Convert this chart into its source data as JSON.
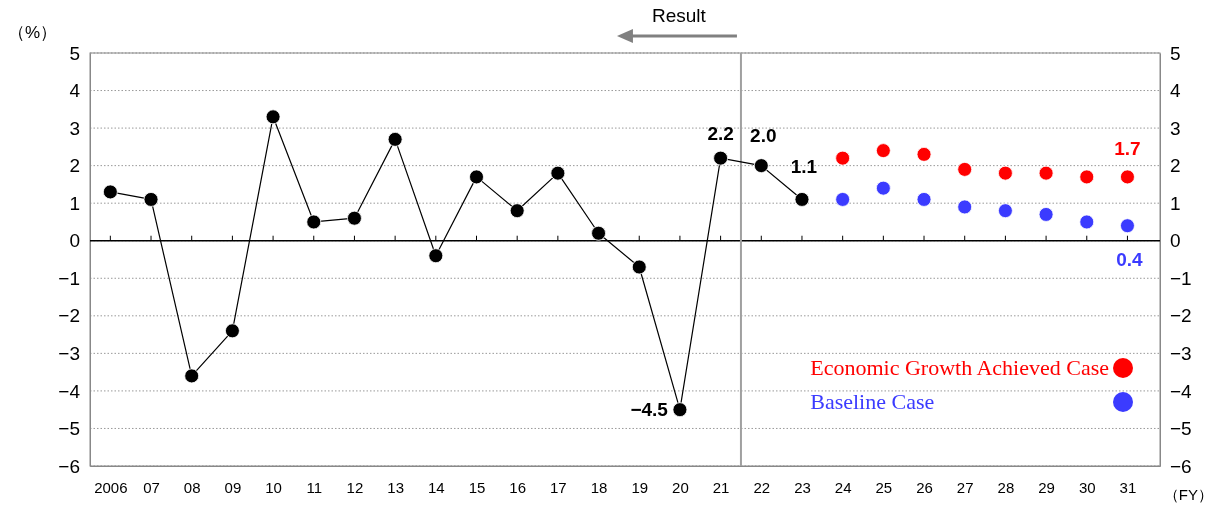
{
  "chart_data": {
    "type": "line",
    "x": [
      2006,
      2007,
      2008,
      2009,
      2010,
      2011,
      2012,
      2013,
      2014,
      2015,
      2016,
      2017,
      2018,
      2019,
      2020,
      2021,
      2022,
      2023
    ],
    "series": [
      {
        "color": "#000000",
        "values": [
          1.3,
          1.1,
          -3.6,
          -2.4,
          3.3,
          0.5,
          0.6,
          2.7,
          -0.4,
          1.7,
          0.8,
          1.8,
          0.2,
          -0.7,
          -4.5,
          2.2,
          2.0,
          1.1
        ],
        "value_labels": [
          null,
          null,
          null,
          null,
          null,
          null,
          null,
          null,
          null,
          null,
          null,
          null,
          null,
          null,
          "−4.5",
          "2.2",
          "2.0",
          "1.1"
        ]
      },
      {
        "type": "scatter",
        "name": "Economic Growth Achieved Case",
        "color": "#ff0000",
        "x": [
          2024,
          2025,
          2026,
          2027,
          2028,
          2029,
          2030,
          2031
        ],
        "values": [
          2.2,
          2.4,
          2.3,
          1.9,
          1.8,
          1.8,
          1.7,
          1.7
        ],
        "value_labels": [
          null,
          null,
          null,
          null,
          null,
          null,
          null,
          "1.7"
        ]
      },
      {
        "type": "scatter",
        "name": "Baseline Case",
        "color": "#3b3bff",
        "x": [
          2024,
          2025,
          2026,
          2027,
          2028,
          2029,
          2030,
          2031
        ],
        "values": [
          1.1,
          1.4,
          1.1,
          0.9,
          0.8,
          0.7,
          0.5,
          0.4
        ],
        "value_labels": [
          null,
          null,
          null,
          null,
          null,
          null,
          null,
          "0.4"
        ]
      }
    ],
    "xlabel": "（FY）",
    "ylabel": "（%）",
    "xlim": [
      2005.5,
      2031.8
    ],
    "xticks": [
      2006,
      {
        "value": 2007,
        "label": "07"
      },
      {
        "value": 2008,
        "label": "08"
      },
      {
        "value": 2009,
        "label": "09"
      },
      {
        "value": 2010,
        "label": "10"
      },
      {
        "value": 2011,
        "label": "11"
      },
      {
        "value": 2012,
        "label": "12"
      },
      {
        "value": 2013,
        "label": "13"
      },
      {
        "value": 2014,
        "label": "14"
      },
      {
        "value": 2015,
        "label": "15"
      },
      {
        "value": 2016,
        "label": "16"
      },
      {
        "value": 2017,
        "label": "17"
      },
      {
        "value": 2018,
        "label": "18"
      },
      {
        "value": 2019,
        "label": "19"
      },
      {
        "value": 2020,
        "label": "20"
      },
      {
        "value": 2021,
        "label": "21"
      },
      {
        "value": 2022,
        "label": "22"
      },
      {
        "value": 2023,
        "label": "23"
      },
      {
        "value": 2024,
        "label": "24"
      },
      {
        "value": 2025,
        "label": "25"
      },
      {
        "value": 2026,
        "label": "26"
      },
      {
        "value": 2027,
        "label": "27"
      },
      {
        "value": 2028,
        "label": "28"
      },
      {
        "value": 2029,
        "label": "29"
      },
      {
        "value": 2030,
        "label": "30"
      },
      {
        "value": 2031,
        "label": "31"
      }
    ],
    "ylim": [
      -6,
      5
    ],
    "yticks": [
      -6,
      -5,
      -4,
      -3,
      -2,
      -1,
      0,
      1,
      2,
      3,
      4,
      5
    ],
    "y2lim": [
      -6,
      5
    ],
    "y2ticks": [
      -6,
      -5,
      -4,
      -3,
      -2,
      -1,
      0,
      1,
      2,
      3,
      4,
      5
    ],
    "ref_lines": [
      {
        "axis": "x",
        "value": 2021.5,
        "label": "Result",
        "color": "#a0a0a0"
      }
    ],
    "grid": "y",
    "marker": "circle",
    "line_style": "solid",
    "legend": "bottom right"
  }
}
